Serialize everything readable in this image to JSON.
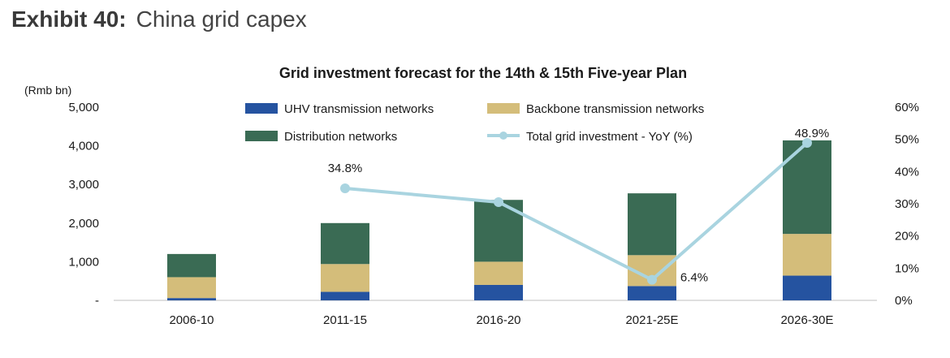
{
  "exhibit": {
    "number": "Exhibit 40:",
    "title": "China grid capex"
  },
  "chart_data": {
    "type": "bar",
    "stacked": true,
    "title": "Grid investment forecast for the 14th & 15th Five-year Plan",
    "y_unit_label": "(Rmb bn)",
    "categories": [
      "2006-10",
      "2011-15",
      "2016-20",
      "2021-25E",
      "2026-30E"
    ],
    "ylim": [
      0,
      5000
    ],
    "y_ticks": [
      {
        "value": 0,
        "label": "-"
      },
      {
        "value": 1000,
        "label": "1,000"
      },
      {
        "value": 2000,
        "label": "2,000"
      },
      {
        "value": 3000,
        "label": "3,000"
      },
      {
        "value": 4000,
        "label": "4,000"
      },
      {
        "value": 5000,
        "label": "5,000"
      }
    ],
    "y2lim": [
      0,
      60
    ],
    "y2_ticks": [
      "0%",
      "10%",
      "20%",
      "30%",
      "40%",
      "50%",
      "60%"
    ],
    "series": [
      {
        "name": "UHV transmission networks",
        "color": "#2553a0",
        "values": [
          60,
          220,
          400,
          370,
          640
        ]
      },
      {
        "name": "Backbone transmission networks",
        "color": "#d4bd7a",
        "values": [
          540,
          720,
          600,
          800,
          1080
        ]
      },
      {
        "name": "Distribution networks",
        "color": "#3a6b54",
        "values": [
          600,
          1060,
          1600,
          1600,
          2420
        ]
      }
    ],
    "line_series": {
      "name": "Total grid investment - YoY (%)",
      "color": "#a9d4e0",
      "axis": "secondary",
      "x_index": [
        1,
        2,
        3,
        4
      ],
      "values": [
        34.8,
        30.5,
        6.4,
        48.9
      ],
      "data_labels": [
        "34.8%",
        "",
        "6.4%",
        "48.9%"
      ]
    },
    "legend_position": "top",
    "grid": false
  }
}
